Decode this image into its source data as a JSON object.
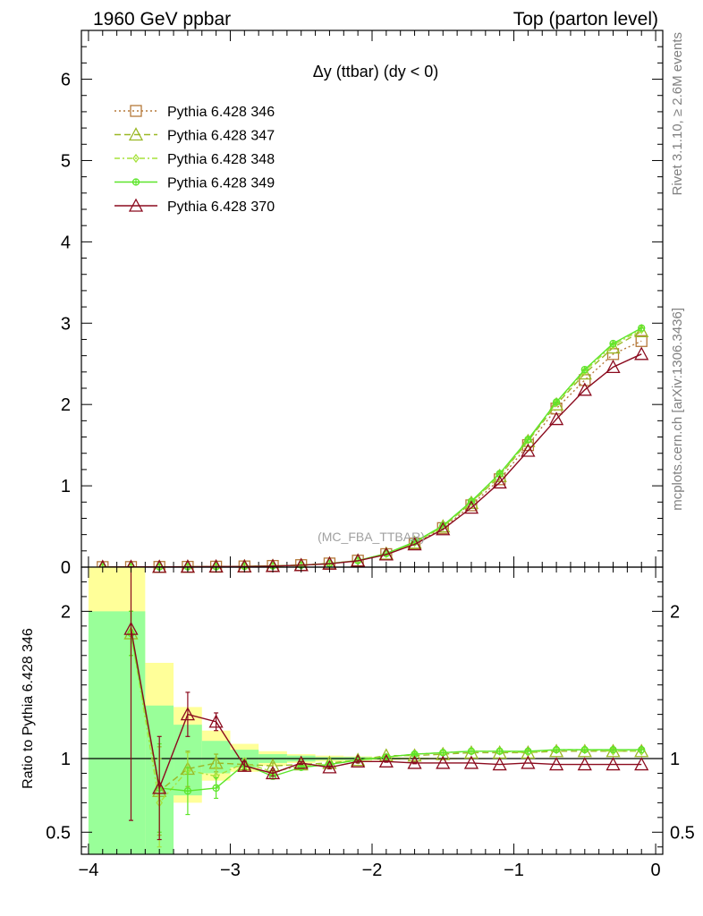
{
  "header": {
    "left": "1960 GeV ppbar",
    "right": "Top (parton level)"
  },
  "side": {
    "rivet": "Rivet 3.1.10, ≥ 2.6M events",
    "mcplots": "mcplots.cern.ch [arXiv:1306.3436]"
  },
  "chart_data": [
    {
      "type": "line",
      "title": "Δy (ttbar) (dy < 0)",
      "watermark": "(MC_FBA_TTBAR)",
      "xlim": [
        -4.05,
        0.05
      ],
      "ylim": [
        0,
        6.6
      ],
      "yticks": [
        0,
        1,
        2,
        3,
        4,
        5,
        6
      ],
      "ytick_labels": [
        "0",
        "1",
        "2",
        "3",
        "4",
        "5",
        "6"
      ],
      "x": [
        -3.9,
        -3.7,
        -3.5,
        -3.3,
        -3.1,
        -2.9,
        -2.7,
        -2.5,
        -2.3,
        -2.1,
        -1.9,
        -1.7,
        -1.5,
        -1.3,
        -1.1,
        -0.9,
        -0.7,
        -0.5,
        -0.3,
        -0.1
      ],
      "series": [
        {
          "name": "Pythia 6.428 346",
          "color": "#b5793a",
          "dash": "2,3",
          "marker": "square",
          "values": [
            0.001,
            0.002,
            0.003,
            0.004,
            0.006,
            0.009,
            0.015,
            0.025,
            0.045,
            0.08,
            0.16,
            0.29,
            0.48,
            0.76,
            1.08,
            1.5,
            1.95,
            2.3,
            2.62,
            2.78
          ]
        },
        {
          "name": "Pythia 6.428 347",
          "color": "#9ab825",
          "dash": "7,4",
          "marker": "triangle",
          "values": [
            0.001,
            0.002,
            0.003,
            0.004,
            0.006,
            0.009,
            0.014,
            0.024,
            0.044,
            0.08,
            0.165,
            0.3,
            0.5,
            0.79,
            1.12,
            1.55,
            2.0,
            2.38,
            2.7,
            2.9
          ]
        },
        {
          "name": "Pythia 6.428 348",
          "color": "#a6e23a",
          "dash": "6,3,2,3",
          "marker": "diamond",
          "values": [
            0.001,
            0.002,
            0.003,
            0.004,
            0.006,
            0.009,
            0.014,
            0.024,
            0.044,
            0.08,
            0.166,
            0.3,
            0.5,
            0.8,
            1.13,
            1.56,
            2.02,
            2.41,
            2.73,
            2.92
          ]
        },
        {
          "name": "Pythia 6.428 349",
          "color": "#5ce52a",
          "dash": "",
          "marker": "circleplus",
          "values": [
            0.001,
            0.002,
            0.002,
            0.004,
            0.005,
            0.009,
            0.014,
            0.024,
            0.044,
            0.08,
            0.167,
            0.31,
            0.51,
            0.81,
            1.15,
            1.57,
            2.03,
            2.43,
            2.75,
            2.94
          ]
        },
        {
          "name": "Pythia 6.428 370",
          "color": "#8b0a1e",
          "dash": "",
          "marker": "triangle",
          "values": [
            0.001,
            0.003,
            0.003,
            0.005,
            0.007,
            0.008,
            0.013,
            0.024,
            0.042,
            0.078,
            0.155,
            0.28,
            0.465,
            0.73,
            1.04,
            1.43,
            1.82,
            2.18,
            2.46,
            2.62
          ]
        }
      ]
    },
    {
      "type": "line",
      "ylabel": "Ratio to Pythia 6.428 346",
      "xlim": [
        -4.05,
        0.05
      ],
      "ylim": [
        0.35,
        2.3
      ],
      "xticks": [
        -4,
        -3,
        -2,
        -1,
        0
      ],
      "xtick_labels": [
        "−4",
        "−3",
        "−2",
        "−1",
        "0"
      ],
      "yticks": [
        0.5,
        1,
        2
      ],
      "ytick_labels": [
        "0.5",
        "1",
        "2"
      ],
      "bands": {
        "edges": [
          -4.0,
          -3.6,
          -3.4,
          -3.2,
          -3.0,
          -2.8,
          -2.6,
          -2.4,
          -2.2,
          -2.0,
          -1.8,
          -1.6,
          -1.4,
          -1.2,
          -1.0,
          -0.8,
          -0.6,
          -0.4,
          -0.2,
          0.0
        ],
        "yellow": [
          [
            0.35,
            2.3
          ],
          [
            0.37,
            1.65
          ],
          [
            0.7,
            1.35
          ],
          [
            0.85,
            1.19
          ],
          [
            0.91,
            1.1
          ],
          [
            0.95,
            1.05
          ],
          [
            0.97,
            1.03
          ],
          [
            0.98,
            1.02
          ],
          [
            0.985,
            1.015
          ],
          [
            0.99,
            1.01
          ],
          [
            0.993,
            1.007
          ],
          [
            0.995,
            1.005
          ],
          [
            0.996,
            1.004
          ],
          [
            0.997,
            1.003
          ],
          [
            0.998,
            1.002
          ],
          [
            0.998,
            1.002
          ],
          [
            0.998,
            1.002
          ],
          [
            0.998,
            1.002
          ],
          [
            0.998,
            1.002
          ]
        ],
        "green": [
          [
            0.35,
            2.0
          ],
          [
            0.35,
            1.36
          ],
          [
            0.75,
            1.23
          ],
          [
            0.9,
            1.12
          ],
          [
            0.94,
            1.06
          ],
          [
            0.97,
            1.03
          ],
          [
            0.98,
            1.02
          ],
          [
            0.99,
            1.01
          ],
          [
            0.99,
            1.01
          ],
          [
            0.995,
            1.005
          ],
          [
            0.996,
            1.004
          ],
          [
            0.997,
            1.003
          ],
          [
            0.998,
            1.002
          ],
          [
            0.998,
            1.002
          ],
          [
            0.999,
            1.001
          ],
          [
            0.999,
            1.001
          ],
          [
            0.999,
            1.001
          ],
          [
            0.999,
            1.001
          ],
          [
            0.999,
            1.001
          ]
        ]
      },
      "x": [
        -3.7,
        -3.5,
        -3.3,
        -3.1,
        -2.9,
        -2.7,
        -2.5,
        -2.3,
        -2.1,
        -1.9,
        -1.7,
        -1.5,
        -1.3,
        -1.1,
        -0.9,
        -0.7,
        -0.5,
        -0.3,
        -0.1
      ],
      "series": [
        {
          "name": "Pythia 6.428 347",
          "color": "#9ab825",
          "dash": "7,4",
          "marker": "triangle",
          "values": [
            1.85,
            0.78,
            0.93,
            0.97,
            0.96,
            0.95,
            0.96,
            0.97,
            0.99,
            1.02,
            1.02,
            1.03,
            1.04,
            1.04,
            1.04,
            1.05,
            1.05,
            1.05,
            1.05
          ],
          "errors": [
            0.15,
            0.3,
            0.12,
            0.06,
            0.03,
            0.02,
            0.01,
            0.01,
            0.01,
            0.005,
            0.005,
            0.004,
            0.004,
            0.004,
            0.003,
            0.003,
            0.003,
            0.003,
            0.003
          ]
        },
        {
          "name": "Pythia 6.428 348",
          "color": "#a6e23a",
          "dash": "6,3,2,3",
          "marker": "diamond",
          "values": [
            1.85,
            0.7,
            0.92,
            0.88,
            0.97,
            0.91,
            0.95,
            0.96,
            0.99,
            1.01,
            1.03,
            1.04,
            1.05,
            1.05,
            1.04,
            1.06,
            1.06,
            1.05,
            1.05
          ],
          "errors": [
            0.15,
            0.3,
            0.12,
            0.06,
            0.03,
            0.02,
            0.01,
            0.01,
            0.01,
            0.005,
            0.005,
            0.004,
            0.004,
            0.004,
            0.003,
            0.003,
            0.003,
            0.003,
            0.003
          ]
        },
        {
          "name": "Pythia 6.428 349",
          "color": "#5ce52a",
          "dash": "",
          "marker": "circleplus",
          "values": [
            1.85,
            0.8,
            0.78,
            0.8,
            0.96,
            0.88,
            0.94,
            0.96,
            0.99,
            1.01,
            1.03,
            1.04,
            1.05,
            1.05,
            1.05,
            1.06,
            1.06,
            1.06,
            1.06
          ],
          "errors": [
            0.15,
            0.3,
            0.16,
            0.07,
            0.03,
            0.02,
            0.01,
            0.01,
            0.01,
            0.005,
            0.005,
            0.004,
            0.004,
            0.004,
            0.003,
            0.003,
            0.003,
            0.003,
            0.003
          ]
        },
        {
          "name": "Pythia 6.428 370",
          "color": "#8b0a1e",
          "dash": "",
          "marker": "triangle",
          "values": [
            1.88,
            0.8,
            1.3,
            1.25,
            0.95,
            0.9,
            0.97,
            0.94,
            0.98,
            0.98,
            0.97,
            0.97,
            0.97,
            0.96,
            0.97,
            0.96,
            0.96,
            0.96,
            0.96
          ],
          "errors": [
            1.3,
            0.35,
            0.15,
            0.06,
            0.03,
            0.02,
            0.01,
            0.01,
            0.01,
            0.005,
            0.005,
            0.004,
            0.004,
            0.004,
            0.003,
            0.003,
            0.003,
            0.003,
            0.003
          ]
        }
      ]
    }
  ]
}
